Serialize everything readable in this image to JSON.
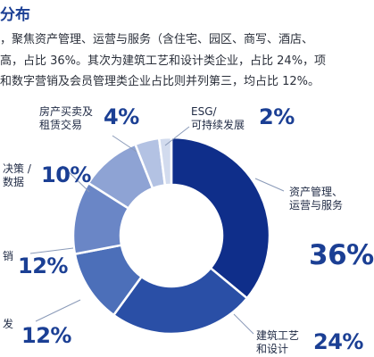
{
  "heading": "分布",
  "paragraph": [
    "，聚焦资产管理、运营与服务（含住宅、园区、商写、酒店、",
    "高，占比 36%。其次为建筑工艺和设计类企业，占比 24%，项",
    "和数字营销及会员管理类企业占比则并列第三，均占比 12%。"
  ],
  "colors": {
    "text_accent": "#1b3f94",
    "leader": "#8a9ab8"
  },
  "chart_data": {
    "type": "pie",
    "donut": true,
    "start_angle_deg": 0,
    "direction": "clockwise",
    "slices": [
      {
        "label_lines": [
          "资产管理、",
          "运营与服务"
        ],
        "percent_text": "36%",
        "value": 36,
        "color": "#0f2e8a"
      },
      {
        "label_lines": [
          "建筑工艺",
          "和设计"
        ],
        "percent_text": "24%",
        "value": 24,
        "color": "#2a4fa6"
      },
      {
        "label_lines": [
          "发"
        ],
        "percent_text": "12%",
        "value": 12,
        "color": "#4c6fb9"
      },
      {
        "label_lines": [
          "销"
        ],
        "percent_text": "12%",
        "value": 12,
        "color": "#6a86c6"
      },
      {
        "label_lines": [
          "决策 /",
          "数据"
        ],
        "percent_text": "10%",
        "value": 10,
        "color": "#8ea3d4"
      },
      {
        "label_lines": [
          "房产买卖及",
          "租赁交易"
        ],
        "percent_text": "4%",
        "value": 4,
        "color": "#b3c2e3"
      },
      {
        "label_lines": [
          "ESG/",
          "可持续发展"
        ],
        "percent_text": "2%",
        "value": 2,
        "color": "#d2dbee"
      }
    ]
  }
}
